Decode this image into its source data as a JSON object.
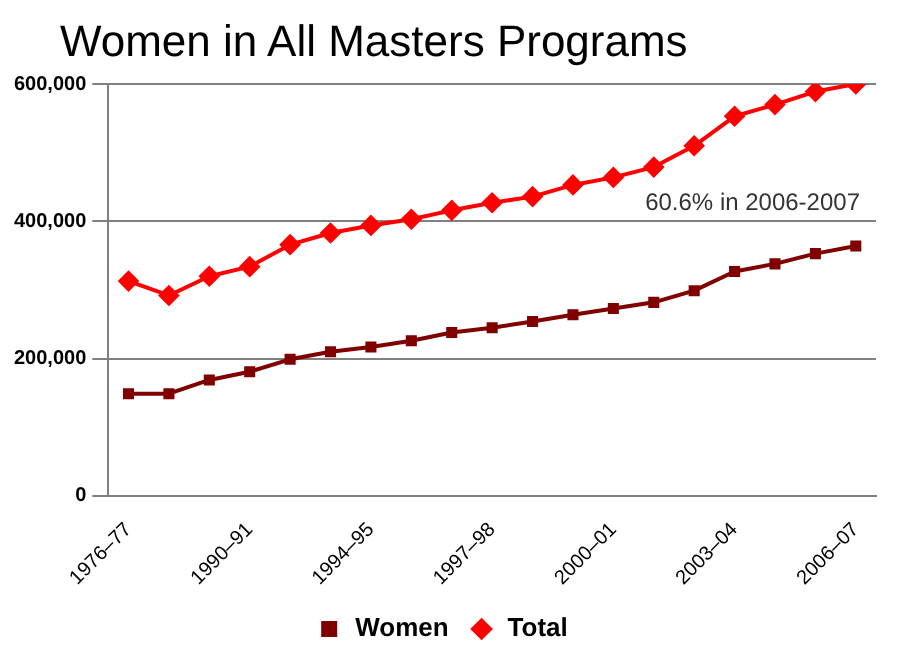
{
  "chart_data": {
    "type": "line",
    "title": "Women in All Masters Programs",
    "categories": [
      "1976–77",
      null,
      null,
      "1990–91",
      null,
      null,
      "1994–95",
      null,
      null,
      "1997–98",
      null,
      null,
      "2000–01",
      null,
      null,
      "2003–04",
      null,
      null,
      "2006–07"
    ],
    "series": [
      {
        "name": "Women",
        "color": "#800000",
        "marker": "square",
        "values": [
          149000,
          149000,
          169000,
          181000,
          199000,
          210000,
          217000,
          226000,
          238000,
          245000,
          254000,
          264000,
          273000,
          282000,
          299000,
          327000,
          338000,
          353000,
          364000
        ]
      },
      {
        "name": "Total",
        "color": "#ff0000",
        "marker": "diamond",
        "values": [
          313000,
          292000,
          320000,
          334000,
          366000,
          383000,
          394000,
          403000,
          416000,
          427000,
          436000,
          453000,
          464000,
          479000,
          510000,
          553000,
          570000,
          589000,
          600000
        ]
      }
    ],
    "ylim": [
      0,
      600000
    ],
    "yticks": [
      {
        "value": 0,
        "label": "0"
      },
      {
        "value": 200000,
        "label": "200,000"
      },
      {
        "value": 400000,
        "label": "400,000"
      },
      {
        "value": 600000,
        "label": "600,000"
      }
    ],
    "grid": "y",
    "legend": "bottom",
    "annotations": [
      "60.6% in 2006-2007"
    ]
  }
}
